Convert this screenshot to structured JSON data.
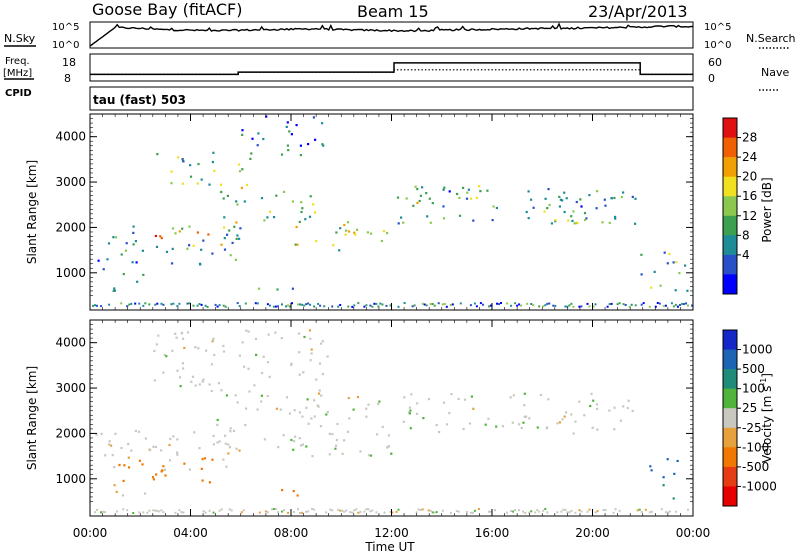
{
  "header": {
    "station": "Goose Bay (fitACF)",
    "beam": "Beam 15",
    "date": "23/Apr/2013"
  },
  "strip_labels": {
    "nsky": "N.Sky",
    "nsearch": "N.Search",
    "freq": "Freq.",
    "freq_unit": "[MHz]",
    "nave": "Nave",
    "cpid": "CPID",
    "mode": "tau (fast) 503"
  },
  "strip_ticks": {
    "noise_top": "10^5",
    "noise_bottom": "10^0",
    "freq_top": "18",
    "freq_bottom": "8",
    "nave_top": "60",
    "nave_bottom": "0"
  },
  "axes": {
    "xlabel": "Time UT",
    "ylabel": "Slant Range [km]"
  },
  "colorbars": {
    "power": {
      "label": "Power [dB]",
      "ticks": [
        "28",
        "24",
        "20",
        "16",
        "12",
        "8",
        "4"
      ],
      "colors": [
        "#0000ff",
        "#2850c8",
        "#1e8c96",
        "#3ca050",
        "#8cc850",
        "#f0e020",
        "#f0a000",
        "#f06000",
        "#e01010"
      ]
    },
    "velocity": {
      "label": "Velocity [m s",
      "label_sup": "-1",
      "label_tail": "]",
      "ticks": [
        "1000",
        "500",
        "100",
        "25",
        "-25",
        "-100",
        "-500",
        "-1000"
      ],
      "colors": [
        "#1428c8",
        "#1e64b4",
        "#1e8c78",
        "#50b43c",
        "#c8c8c0",
        "#e6a03c",
        "#f07800",
        "#e63c14",
        "#e60000"
      ]
    }
  },
  "chart_data": [
    {
      "type": "line",
      "title": "N.Sky / N.Search",
      "x_unit": "hours UT",
      "x": [
        0,
        1,
        2,
        3,
        4,
        5,
        6,
        7,
        8,
        9,
        10,
        11,
        12,
        13,
        14,
        15,
        16,
        17,
        18,
        19,
        20,
        21,
        22,
        23,
        24
      ],
      "series": [
        {
          "name": "N.Sky",
          "log10_values": [
            0.0,
            4.2,
            4.0,
            3.7,
            3.6,
            3.5,
            3.6,
            3.7,
            3.8,
            3.9,
            3.7,
            3.6,
            3.5,
            3.4,
            3.6,
            3.7,
            3.8,
            3.9,
            4.0,
            4.0,
            4.1,
            4.2,
            4.3,
            4.5,
            4.4
          ]
        }
      ],
      "ylim_log10": [
        0,
        5
      ]
    },
    {
      "type": "line",
      "title": "Freq. / Nave",
      "x": [
        0,
        5.9,
        5.9,
        12.1,
        12.1,
        21.9,
        21.9,
        24
      ],
      "series": [
        {
          "name": "Freq. [MHz]",
          "values": [
            10,
            10,
            11,
            11,
            15,
            15,
            10,
            10
          ]
        },
        {
          "name": "Nave",
          "values": [
            10,
            10,
            11,
            11,
            12,
            12,
            10,
            10
          ]
        }
      ],
      "ylim": [
        8,
        18
      ]
    },
    {
      "type": "heatmap",
      "quantity": "Power [dB]",
      "x_unit": "hours UT",
      "xlim": [
        0,
        24
      ],
      "xticks": [
        "00:00",
        "04:00",
        "08:00",
        "12:00",
        "16:00",
        "20:00",
        "00:00"
      ],
      "ylim": [
        180,
        4500
      ],
      "yticks": [
        1000,
        2000,
        3000,
        4000
      ],
      "clim": [
        0,
        30
      ],
      "regions": [
        {
          "x": [
            0.2,
            6.0
          ],
          "y": [
            1200,
            2100
          ],
          "level": 10
        },
        {
          "x": [
            2.5,
            5.5
          ],
          "y": [
            1600,
            2000
          ],
          "level": 22
        },
        {
          "x": [
            5.0,
            9.0
          ],
          "y": [
            2000,
            2900
          ],
          "level": 14
        },
        {
          "x": [
            8.0,
            12.0
          ],
          "y": [
            1500,
            2200
          ],
          "level": 16
        },
        {
          "x": [
            2.5,
            6.5
          ],
          "y": [
            2900,
            3700
          ],
          "level": 12
        },
        {
          "x": [
            6.0,
            9.5
          ],
          "y": [
            3600,
            4500
          ],
          "level": 6
        },
        {
          "x": [
            12.2,
            21.8
          ],
          "y": [
            2100,
            2900
          ],
          "level": 9
        },
        {
          "x": [
            12.5,
            15.5
          ],
          "y": [
            2500,
            3000
          ],
          "level": 15
        },
        {
          "x": [
            18.0,
            21.8
          ],
          "y": [
            2100,
            2700
          ],
          "level": 12
        },
        {
          "x": [
            21.9,
            24.0
          ],
          "y": [
            600,
            1500
          ],
          "level": 11
        },
        {
          "x": [
            0.2,
            2.2
          ],
          "y": [
            600,
            1300
          ],
          "level": 7
        },
        {
          "x": [
            6.5,
            9.0
          ],
          "y": [
            650,
            800
          ],
          "level": 8
        }
      ]
    },
    {
      "type": "heatmap",
      "quantity": "Velocity [m s^-1]",
      "x_unit": "hours UT",
      "xlim": [
        0,
        24
      ],
      "xticks": [
        "00:00",
        "04:00",
        "08:00",
        "12:00",
        "16:00",
        "20:00",
        "00:00"
      ],
      "ylim": [
        180,
        4500
      ],
      "yticks": [
        1000,
        2000,
        3000,
        4000
      ],
      "clim": [
        -1000,
        1000
      ],
      "regions": [
        {
          "x": [
            0.2,
            6.0
          ],
          "y": [
            1200,
            2100
          ],
          "velocity": -10
        },
        {
          "x": [
            1.0,
            5.0
          ],
          "y": [
            900,
            1500
          ],
          "velocity": -150
        },
        {
          "x": [
            5.0,
            12.0
          ],
          "y": [
            1500,
            2900
          ],
          "velocity": 0
        },
        {
          "x": [
            2.5,
            9.5
          ],
          "y": [
            2900,
            4300
          ],
          "velocity": 0
        },
        {
          "x": [
            12.2,
            21.8
          ],
          "y": [
            2000,
            2900
          ],
          "velocity": 0
        },
        {
          "x": [
            21.9,
            23.5
          ],
          "y": [
            900,
            1500
          ],
          "velocity": 500
        },
        {
          "x": [
            22.5,
            24.0
          ],
          "y": [
            550,
            900
          ],
          "velocity": 100
        },
        {
          "x": [
            0.2,
            2.2
          ],
          "y": [
            600,
            900
          ],
          "velocity": -20
        },
        {
          "x": [
            6.5,
            9.0
          ],
          "y": [
            650,
            800
          ],
          "velocity": -100
        }
      ]
    }
  ]
}
